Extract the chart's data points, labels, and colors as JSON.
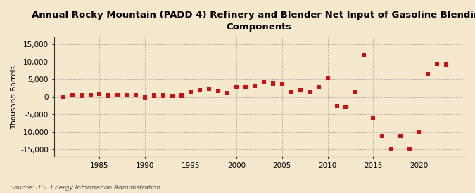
{
  "title": "Annual Rocky Mountain (PADD 4) Refinery and Blender Net Input of Gasoline Blending\nComponents",
  "ylabel": "Thousand Barrels",
  "source": "Source: U.S. Energy Information Administration",
  "background_color": "#f5e8cc",
  "plot_bg_color": "#f5e8cc",
  "marker_color": "#cc1111",
  "years": [
    1981,
    1982,
    1983,
    1984,
    1985,
    1986,
    1987,
    1988,
    1989,
    1990,
    1991,
    1992,
    1993,
    1994,
    1995,
    1996,
    1997,
    1998,
    1999,
    2000,
    2001,
    2002,
    2003,
    2004,
    2005,
    2006,
    2007,
    2008,
    2009,
    2010,
    2011,
    2012,
    2013,
    2014,
    2015,
    2016,
    2017,
    2018,
    2019,
    2020,
    2021,
    2022,
    2023
  ],
  "values": [
    100,
    700,
    500,
    700,
    800,
    500,
    700,
    700,
    600,
    -100,
    400,
    400,
    300,
    400,
    1500,
    2000,
    2200,
    1700,
    1300,
    2800,
    2800,
    3200,
    4200,
    3900,
    3600,
    1500,
    2000,
    1500,
    2800,
    5500,
    -2500,
    -3000,
    1500,
    12000,
    -6000,
    -11200,
    -14800,
    -11200,
    -14700,
    -10000,
    6600,
    9400,
    9200
  ],
  "xlim": [
    1980,
    2025
  ],
  "ylim": [
    -17000,
    17000
  ],
  "yticks": [
    -15000,
    -10000,
    -5000,
    0,
    5000,
    10000,
    15000
  ],
  "xticks": [
    1985,
    1990,
    1995,
    2000,
    2005,
    2010,
    2015,
    2020
  ],
  "title_fontsize": 9.5,
  "ylabel_fontsize": 7.5,
  "tick_fontsize": 7.5,
  "source_fontsize": 6.5
}
